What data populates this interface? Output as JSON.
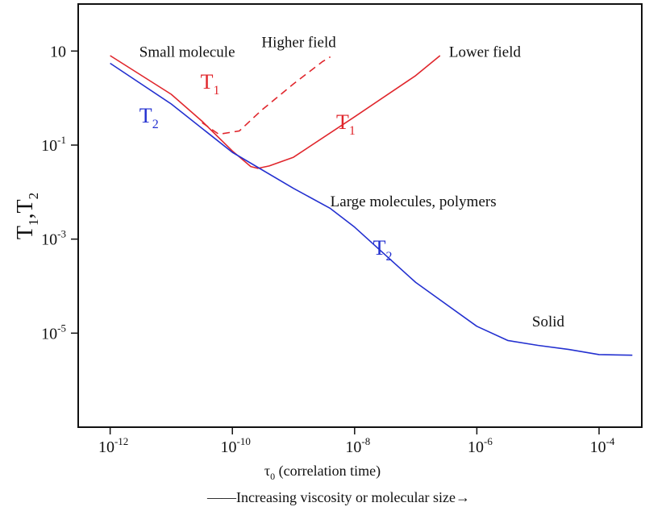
{
  "chart_data": {
    "type": "line",
    "title": "",
    "x_scale": "log",
    "y_scale": "log",
    "xlim": [
      3e-13,
      0.0005
    ],
    "ylim": [
      1e-07,
      100
    ],
    "x_ticks": [
      {
        "value": 1e-12,
        "base": "10",
        "exp": "-12"
      },
      {
        "value": 1e-10,
        "base": "10",
        "exp": "-10"
      },
      {
        "value": 1e-08,
        "base": "10",
        "exp": "-8"
      },
      {
        "value": 1e-06,
        "base": "10",
        "exp": "-6"
      },
      {
        "value": 0.0001,
        "base": "10",
        "exp": "-4"
      }
    ],
    "y_ticks": [
      {
        "value": 10,
        "base": "10",
        "exp": ""
      },
      {
        "value": 0.1,
        "base": "10",
        "exp": "-1"
      },
      {
        "value": 0.001,
        "base": "10",
        "exp": "-3"
      },
      {
        "value": 1e-05,
        "base": "10",
        "exp": "-5"
      }
    ],
    "xlabel": {
      "symbol": "τ",
      "sub": "0",
      "text": "  (correlation time)"
    },
    "ylabel": {
      "t1": "T",
      "s1": "1",
      "sep": ",",
      "t2": "T",
      "s2": "2"
    },
    "footer": "——Increasing viscosity or molecular size→",
    "series": [
      {
        "key": "t1_higher_field",
        "color": "#e0262c",
        "dashed": true,
        "points": [
          [
            3.2e-11,
            0.3
          ],
          [
            6e-11,
            0.17
          ],
          [
            1.3e-10,
            0.2
          ],
          [
            3e-10,
            0.55
          ],
          [
            1e-09,
            2.0
          ],
          [
            3e-09,
            6.0
          ],
          [
            4e-09,
            7.5
          ]
        ]
      },
      {
        "key": "t1_lower_field",
        "color": "#e0262c",
        "dashed": false,
        "points": [
          [
            1e-12,
            8.0
          ],
          [
            1e-11,
            1.2
          ],
          [
            3.2e-11,
            0.32
          ],
          [
            1e-10,
            0.075
          ],
          [
            2e-10,
            0.035
          ],
          [
            2.6e-10,
            0.032
          ],
          [
            4e-10,
            0.036
          ],
          [
            1e-09,
            0.055
          ],
          [
            1e-08,
            0.4
          ],
          [
            1e-07,
            3.0
          ],
          [
            2.5e-07,
            8.0
          ]
        ]
      },
      {
        "key": "t2",
        "color": "#2330d0",
        "dashed": false,
        "points": [
          [
            1e-12,
            5.5
          ],
          [
            1e-11,
            0.75
          ],
          [
            1e-10,
            0.07
          ],
          [
            1e-09,
            0.012
          ],
          [
            4e-09,
            0.0045
          ],
          [
            1e-08,
            0.0018
          ],
          [
            1e-07,
            0.00012
          ],
          [
            1e-06,
            1.4e-05
          ],
          [
            3.2e-06,
            7e-06
          ],
          [
            1e-05,
            5.5e-06
          ],
          [
            3.2e-05,
            4.5e-06
          ],
          [
            0.0001,
            3.5e-06
          ],
          [
            0.00035,
            3.4e-06
          ]
        ]
      }
    ],
    "series_labels": [
      {
        "key": "t1_left",
        "letter": "T",
        "sub": "1",
        "color": "#e0262c",
        "at": [
          3e-11,
          1.6
        ]
      },
      {
        "key": "t1_right",
        "letter": "T",
        "sub": "1",
        "color": "#e0262c",
        "at": [
          5e-09,
          0.22
        ]
      },
      {
        "key": "t2_left",
        "letter": "T",
        "sub": "2",
        "color": "#2330d0",
        "at": [
          3e-12,
          0.3
        ]
      },
      {
        "key": "t2_right",
        "letter": "T",
        "sub": "2",
        "color": "#2330d0",
        "at": [
          2e-08,
          0.00047
        ]
      }
    ],
    "annotations": [
      {
        "key": "small-molecule",
        "text": "Small molecule",
        "at": [
          3e-12,
          7.5
        ]
      },
      {
        "key": "higher-field",
        "text": "Higher field",
        "at": [
          3e-10,
          12
        ]
      },
      {
        "key": "lower-field",
        "text": "Lower field",
        "at": [
          3.5e-07,
          7.5
        ]
      },
      {
        "key": "large-molecules",
        "text": "Large molecules, polymers",
        "at": [
          4e-09,
          0.005
        ]
      },
      {
        "key": "solid",
        "text": "Solid",
        "at": [
          8e-06,
          1.4e-05
        ]
      }
    ]
  }
}
